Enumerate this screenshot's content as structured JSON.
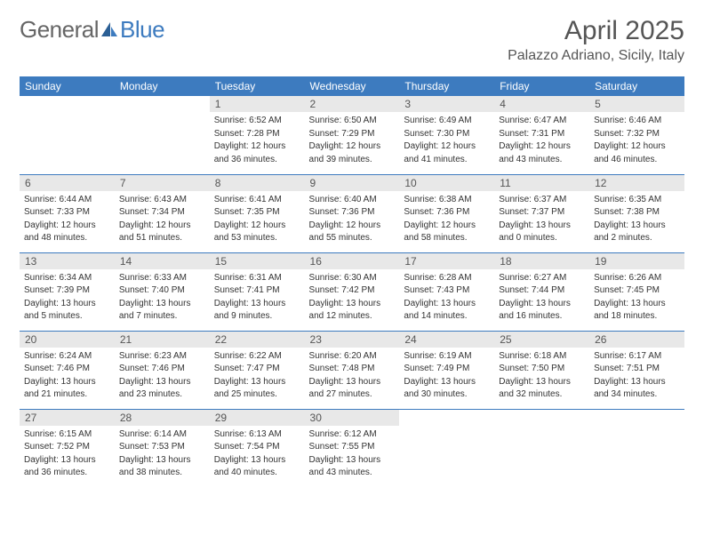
{
  "logo": {
    "text1": "General",
    "text2": "Blue"
  },
  "title": "April 2025",
  "location": "Palazzo Adriano, Sicily, Italy",
  "colors": {
    "header_bg": "#3d7bbf",
    "header_text": "#ffffff",
    "daynum_bg": "#e8e8e8",
    "border": "#3d7bbf",
    "body_text": "#333333",
    "title_text": "#555555"
  },
  "weekdays": [
    "Sunday",
    "Monday",
    "Tuesday",
    "Wednesday",
    "Thursday",
    "Friday",
    "Saturday"
  ],
  "weeks": [
    [
      null,
      null,
      {
        "n": "1",
        "sr": "Sunrise: 6:52 AM",
        "ss": "Sunset: 7:28 PM",
        "d1": "Daylight: 12 hours",
        "d2": "and 36 minutes."
      },
      {
        "n": "2",
        "sr": "Sunrise: 6:50 AM",
        "ss": "Sunset: 7:29 PM",
        "d1": "Daylight: 12 hours",
        "d2": "and 39 minutes."
      },
      {
        "n": "3",
        "sr": "Sunrise: 6:49 AM",
        "ss": "Sunset: 7:30 PM",
        "d1": "Daylight: 12 hours",
        "d2": "and 41 minutes."
      },
      {
        "n": "4",
        "sr": "Sunrise: 6:47 AM",
        "ss": "Sunset: 7:31 PM",
        "d1": "Daylight: 12 hours",
        "d2": "and 43 minutes."
      },
      {
        "n": "5",
        "sr": "Sunrise: 6:46 AM",
        "ss": "Sunset: 7:32 PM",
        "d1": "Daylight: 12 hours",
        "d2": "and 46 minutes."
      }
    ],
    [
      {
        "n": "6",
        "sr": "Sunrise: 6:44 AM",
        "ss": "Sunset: 7:33 PM",
        "d1": "Daylight: 12 hours",
        "d2": "and 48 minutes."
      },
      {
        "n": "7",
        "sr": "Sunrise: 6:43 AM",
        "ss": "Sunset: 7:34 PM",
        "d1": "Daylight: 12 hours",
        "d2": "and 51 minutes."
      },
      {
        "n": "8",
        "sr": "Sunrise: 6:41 AM",
        "ss": "Sunset: 7:35 PM",
        "d1": "Daylight: 12 hours",
        "d2": "and 53 minutes."
      },
      {
        "n": "9",
        "sr": "Sunrise: 6:40 AM",
        "ss": "Sunset: 7:36 PM",
        "d1": "Daylight: 12 hours",
        "d2": "and 55 minutes."
      },
      {
        "n": "10",
        "sr": "Sunrise: 6:38 AM",
        "ss": "Sunset: 7:36 PM",
        "d1": "Daylight: 12 hours",
        "d2": "and 58 minutes."
      },
      {
        "n": "11",
        "sr": "Sunrise: 6:37 AM",
        "ss": "Sunset: 7:37 PM",
        "d1": "Daylight: 13 hours",
        "d2": "and 0 minutes."
      },
      {
        "n": "12",
        "sr": "Sunrise: 6:35 AM",
        "ss": "Sunset: 7:38 PM",
        "d1": "Daylight: 13 hours",
        "d2": "and 2 minutes."
      }
    ],
    [
      {
        "n": "13",
        "sr": "Sunrise: 6:34 AM",
        "ss": "Sunset: 7:39 PM",
        "d1": "Daylight: 13 hours",
        "d2": "and 5 minutes."
      },
      {
        "n": "14",
        "sr": "Sunrise: 6:33 AM",
        "ss": "Sunset: 7:40 PM",
        "d1": "Daylight: 13 hours",
        "d2": "and 7 minutes."
      },
      {
        "n": "15",
        "sr": "Sunrise: 6:31 AM",
        "ss": "Sunset: 7:41 PM",
        "d1": "Daylight: 13 hours",
        "d2": "and 9 minutes."
      },
      {
        "n": "16",
        "sr": "Sunrise: 6:30 AM",
        "ss": "Sunset: 7:42 PM",
        "d1": "Daylight: 13 hours",
        "d2": "and 12 minutes."
      },
      {
        "n": "17",
        "sr": "Sunrise: 6:28 AM",
        "ss": "Sunset: 7:43 PM",
        "d1": "Daylight: 13 hours",
        "d2": "and 14 minutes."
      },
      {
        "n": "18",
        "sr": "Sunrise: 6:27 AM",
        "ss": "Sunset: 7:44 PM",
        "d1": "Daylight: 13 hours",
        "d2": "and 16 minutes."
      },
      {
        "n": "19",
        "sr": "Sunrise: 6:26 AM",
        "ss": "Sunset: 7:45 PM",
        "d1": "Daylight: 13 hours",
        "d2": "and 18 minutes."
      }
    ],
    [
      {
        "n": "20",
        "sr": "Sunrise: 6:24 AM",
        "ss": "Sunset: 7:46 PM",
        "d1": "Daylight: 13 hours",
        "d2": "and 21 minutes."
      },
      {
        "n": "21",
        "sr": "Sunrise: 6:23 AM",
        "ss": "Sunset: 7:46 PM",
        "d1": "Daylight: 13 hours",
        "d2": "and 23 minutes."
      },
      {
        "n": "22",
        "sr": "Sunrise: 6:22 AM",
        "ss": "Sunset: 7:47 PM",
        "d1": "Daylight: 13 hours",
        "d2": "and 25 minutes."
      },
      {
        "n": "23",
        "sr": "Sunrise: 6:20 AM",
        "ss": "Sunset: 7:48 PM",
        "d1": "Daylight: 13 hours",
        "d2": "and 27 minutes."
      },
      {
        "n": "24",
        "sr": "Sunrise: 6:19 AM",
        "ss": "Sunset: 7:49 PM",
        "d1": "Daylight: 13 hours",
        "d2": "and 30 minutes."
      },
      {
        "n": "25",
        "sr": "Sunrise: 6:18 AM",
        "ss": "Sunset: 7:50 PM",
        "d1": "Daylight: 13 hours",
        "d2": "and 32 minutes."
      },
      {
        "n": "26",
        "sr": "Sunrise: 6:17 AM",
        "ss": "Sunset: 7:51 PM",
        "d1": "Daylight: 13 hours",
        "d2": "and 34 minutes."
      }
    ],
    [
      {
        "n": "27",
        "sr": "Sunrise: 6:15 AM",
        "ss": "Sunset: 7:52 PM",
        "d1": "Daylight: 13 hours",
        "d2": "and 36 minutes."
      },
      {
        "n": "28",
        "sr": "Sunrise: 6:14 AM",
        "ss": "Sunset: 7:53 PM",
        "d1": "Daylight: 13 hours",
        "d2": "and 38 minutes."
      },
      {
        "n": "29",
        "sr": "Sunrise: 6:13 AM",
        "ss": "Sunset: 7:54 PM",
        "d1": "Daylight: 13 hours",
        "d2": "and 40 minutes."
      },
      {
        "n": "30",
        "sr": "Sunrise: 6:12 AM",
        "ss": "Sunset: 7:55 PM",
        "d1": "Daylight: 13 hours",
        "d2": "and 43 minutes."
      },
      null,
      null,
      null
    ]
  ]
}
